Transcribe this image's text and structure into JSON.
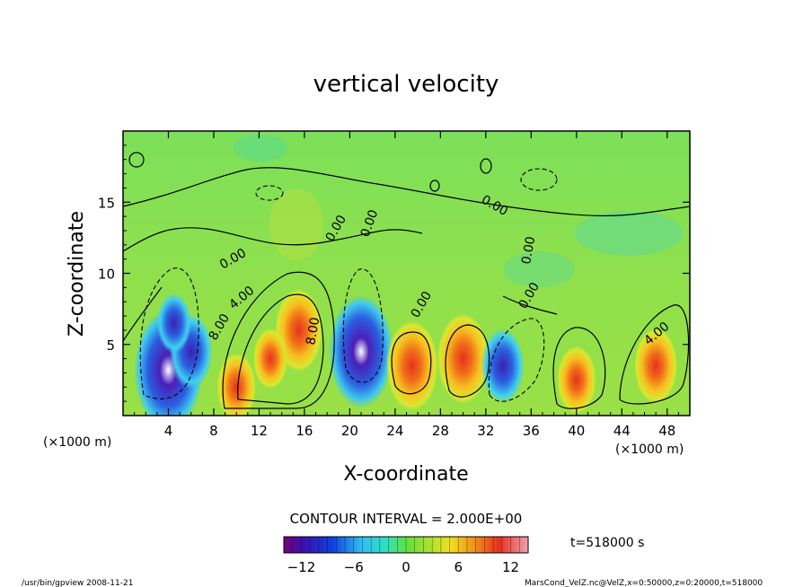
{
  "chart_data": {
    "type": "heatmap",
    "title": "vertical velocity",
    "xlabel": "X-coordinate",
    "ylabel": "Z-coordinate",
    "x_unit": "(×1000 m)",
    "x_unit_right": "(×1000 m)",
    "x_ticks": [
      "4",
      "8",
      "12",
      "16",
      "20",
      "24",
      "28",
      "32",
      "36",
      "40",
      "44",
      "48"
    ],
    "y_ticks": [
      "5",
      "10",
      "15"
    ],
    "xlim": [
      0,
      50
    ],
    "ylim": [
      0,
      20
    ],
    "contour_labels": [
      "0.00",
      "0.00",
      "0.00",
      "0.00",
      "0.00",
      "0.00",
      "0.00",
      "4.00",
      "8.00",
      "8.00",
      "4.00"
    ],
    "contour_interval_text": "CONTOUR INTERVAL = 2.000E+00",
    "time_text": "t=518000 s",
    "colorbar": {
      "ticks": [
        "−12",
        "−6",
        "0",
        "6",
        "12"
      ],
      "range": [
        -14,
        14
      ]
    },
    "cells": [
      {
        "x": 4.0,
        "z": 3.2,
        "w": -16
      },
      {
        "x": 6.0,
        "z": 4.5,
        "w": -10
      },
      {
        "x": 4.5,
        "z": 6.5,
        "w": -8
      },
      {
        "x": 10.0,
        "z": 2.0,
        "w": 9
      },
      {
        "x": 15.5,
        "z": 6.0,
        "w": 11
      },
      {
        "x": 13.0,
        "z": 4.0,
        "w": 8
      },
      {
        "x": 21.0,
        "z": 4.5,
        "w": -15
      },
      {
        "x": 25.5,
        "z": 3.5,
        "w": 12
      },
      {
        "x": 30.0,
        "z": 4.0,
        "w": 12
      },
      {
        "x": 33.5,
        "z": 3.5,
        "w": -10
      },
      {
        "x": 40.0,
        "z": 2.5,
        "w": 9
      },
      {
        "x": 47.0,
        "z": 3.5,
        "w": 10
      }
    ],
    "color_scale": "rainbow (violet=negative, green=0, red/pink=positive)"
  },
  "footer": {
    "left": "/usr/bin/gpview  2008-11-21",
    "right": "MarsCond_VelZ.nc@VelZ,x=0:50000,z=0:20000,t=518000"
  }
}
